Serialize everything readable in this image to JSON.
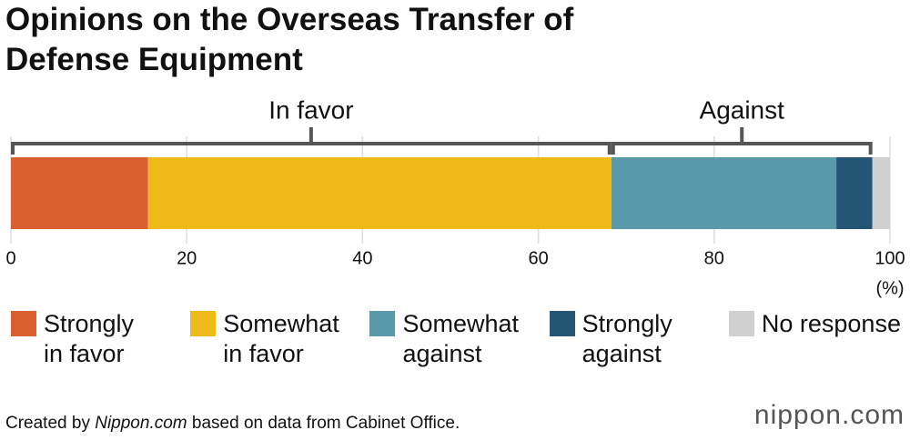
{
  "chart_data": {
    "type": "stacked-bar",
    "title": "Opinions on the Overseas Transfer of Defense Equipment",
    "series": [
      {
        "name": "Strongly in favor",
        "color": "#d9612f",
        "values": [
          15.6
        ]
      },
      {
        "name": "Somewhat in favor",
        "color": "#efba17",
        "values": [
          52.7
        ]
      },
      {
        "name": "Somewhat against",
        "color": "#5899aa",
        "values": [
          25.6
        ]
      },
      {
        "name": "Strongly against",
        "color": "#245575",
        "values": [
          4.1
        ]
      },
      {
        "name": "No response",
        "color": "#d0d0d0",
        "values": [
          2.0
        ]
      }
    ],
    "annotations": [
      "In favor",
      "Against"
    ],
    "xlim": [
      0,
      100
    ],
    "xticks": [
      0,
      20,
      40,
      60,
      80,
      100
    ],
    "xlabel": "(%)",
    "grid": true,
    "source": [
      "Created by ",
      "Nippon.com",
      " based on data from Cabinet Office."
    ],
    "logo": "nippon.com"
  }
}
